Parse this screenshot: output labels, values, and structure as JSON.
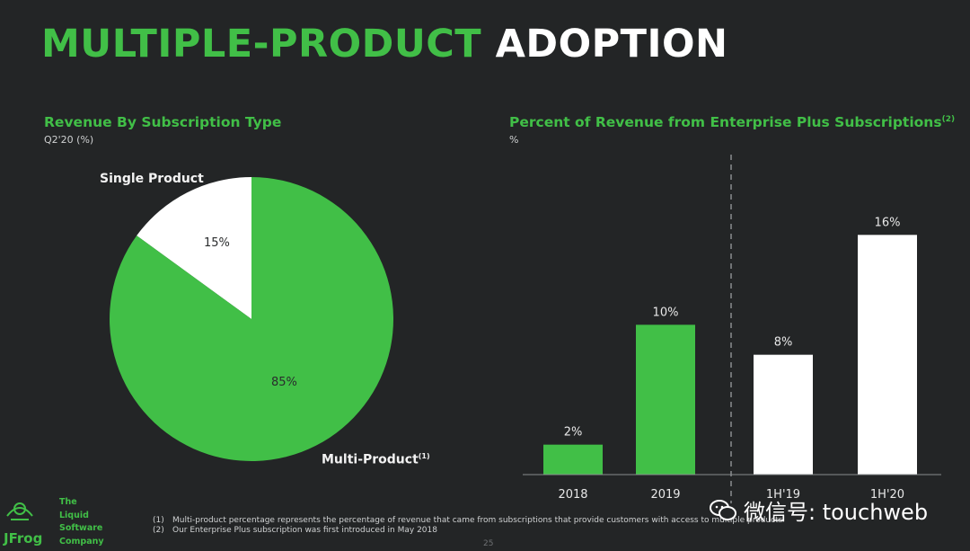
{
  "slide": {
    "title_green": "MULTIPLE-PRODUCT",
    "title_white": "ADOPTION",
    "page_number": "25"
  },
  "left_panel": {
    "title": "Revenue By Subscription Type",
    "unit": "Q2'20 (%)"
  },
  "right_panel": {
    "title": "Percent of Revenue from Enterprise Plus Subscriptions",
    "title_note": "(2)",
    "unit": "%"
  },
  "chart_data": [
    {
      "type": "pie",
      "title": "Revenue By Subscription Type",
      "subtitle": "Q2'20 (%)",
      "slices": [
        {
          "label": "Single Product",
          "value": 15,
          "value_label": "15%",
          "color": "#ffffff"
        },
        {
          "label": "Multi-Product",
          "label_note": "(1)",
          "value": 85,
          "value_label": "85%",
          "color": "#41bf47"
        }
      ]
    },
    {
      "type": "bar",
      "title": "Percent of Revenue from Enterprise Plus Subscriptions",
      "ylabel": "%",
      "categories": [
        "2018",
        "2019",
        "1H'19",
        "1H'20"
      ],
      "values": [
        2,
        10,
        8,
        16
      ],
      "value_labels": [
        "2%",
        "10%",
        "8%",
        "16%"
      ],
      "colors": [
        "#41bf47",
        "#41bf47",
        "#ffffff",
        "#ffffff"
      ],
      "ylim": [
        0,
        18
      ],
      "divider_between": [
        "2019",
        "1H'19"
      ]
    }
  ],
  "footnotes": [
    {
      "marker": "(1)",
      "text": "Multi-product percentage represents the percentage of revenue that came from subscriptions that provide customers with access to multiple products"
    },
    {
      "marker": "(2)",
      "text": "Our Enterprise Plus subscription was first introduced in May 2018"
    }
  ],
  "logo": {
    "name": "JFrog",
    "tagline": [
      "The",
      "Liquid",
      "Software",
      "Company"
    ]
  },
  "watermark": {
    "text": "微信号: touchweb"
  },
  "colors": {
    "background": "#232526",
    "accent_green": "#41bf47",
    "white": "#ffffff"
  }
}
